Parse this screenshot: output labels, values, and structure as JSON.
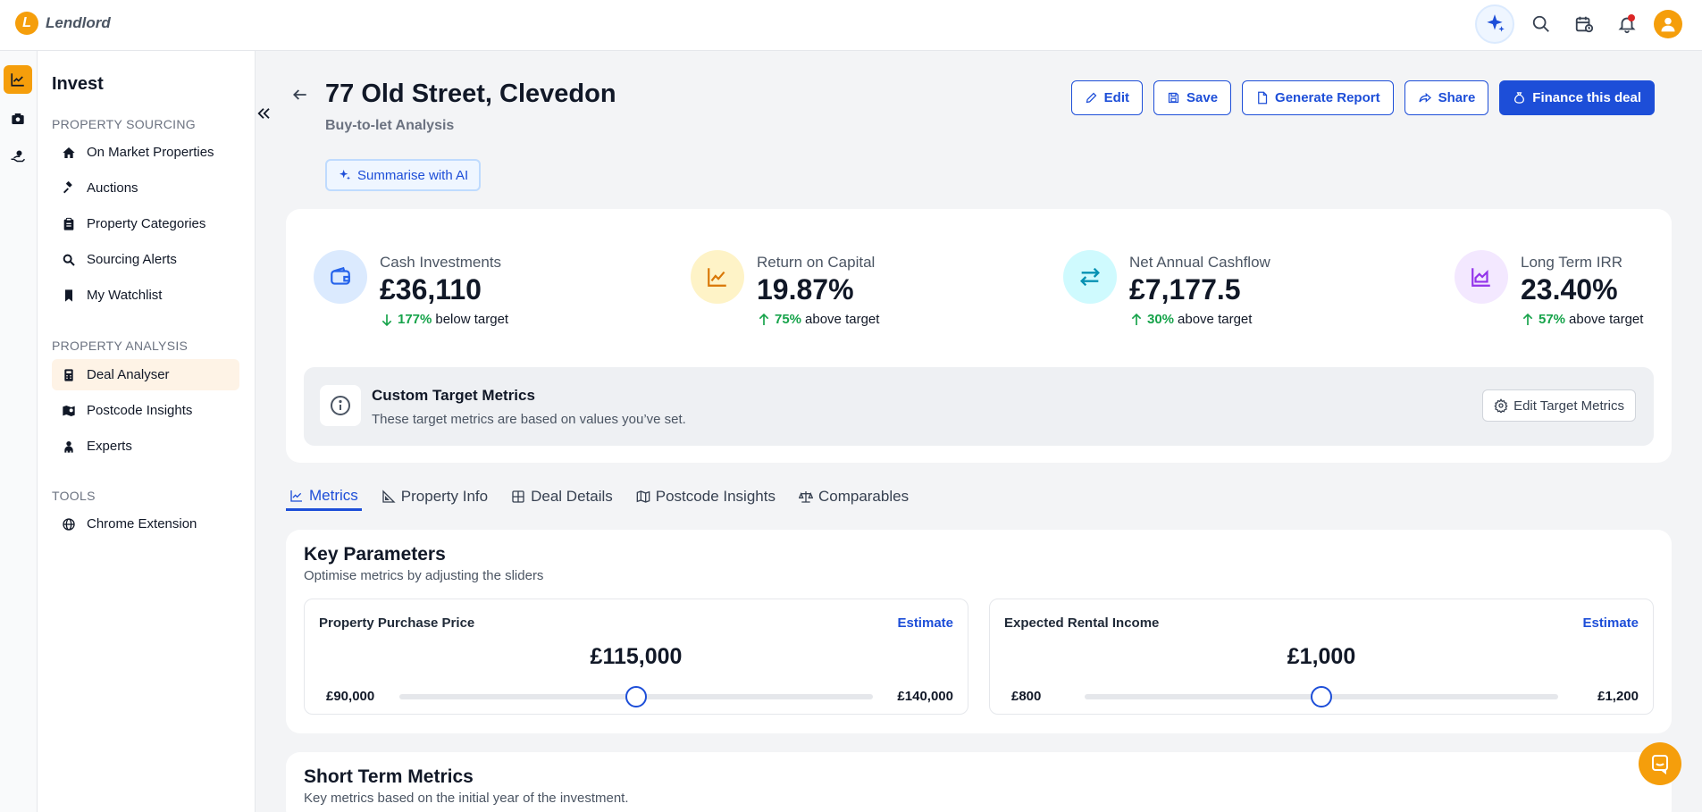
{
  "app": {
    "logo_letter": "L",
    "name": "Lendlord"
  },
  "sidebar": {
    "title": "Invest",
    "sections": [
      {
        "label": "PROPERTY SOURCING",
        "items": [
          {
            "label": "On Market Properties",
            "icon": "home-icon"
          },
          {
            "label": "Auctions",
            "icon": "gavel-icon"
          },
          {
            "label": "Property Categories",
            "icon": "clipboard-icon"
          },
          {
            "label": "Sourcing Alerts",
            "icon": "search-icon"
          },
          {
            "label": "My Watchlist",
            "icon": "bookmark-icon"
          }
        ]
      },
      {
        "label": "PROPERTY ANALYSIS",
        "items": [
          {
            "label": "Deal Analyser",
            "icon": "calculator-icon",
            "active": true
          },
          {
            "label": "Postcode Insights",
            "icon": "map-icon"
          },
          {
            "label": "Experts",
            "icon": "person-icon"
          }
        ]
      },
      {
        "label": "TOOLS",
        "items": [
          {
            "label": "Chrome Extension",
            "icon": "globe-icon"
          }
        ]
      }
    ]
  },
  "header": {
    "title": "77 Old Street, Clevedon",
    "subtitle": "Buy-to-let Analysis",
    "ai_button": "Summarise with AI",
    "actions": {
      "edit": "Edit",
      "save": "Save",
      "report": "Generate Report",
      "share": "Share",
      "finance": "Finance this deal"
    }
  },
  "kpis": [
    {
      "label": "Cash Investments",
      "value": "£36,110",
      "pct": "177%",
      "direction": "down",
      "note": "below target",
      "icon": "wallet-icon",
      "color": "#dbeafe"
    },
    {
      "label": "Return on Capital",
      "value": "19.87%",
      "pct": "75%",
      "direction": "up",
      "note": "above target",
      "icon": "line-chart-icon",
      "color": "#fef3c7"
    },
    {
      "label": "Net Annual Cashflow",
      "value": "£7,177.5",
      "pct": "30%",
      "direction": "up",
      "note": "above target",
      "icon": "arrows-exchange-icon",
      "color": "#cffafe"
    },
    {
      "label": "Long Term IRR",
      "value": "23.40%",
      "pct": "57%",
      "direction": "up",
      "note": "above target",
      "icon": "area-chart-icon",
      "color": "#f3e8ff"
    }
  ],
  "custom_targets": {
    "title": "Custom Target Metrics",
    "description": "These target metrics are based on values you’ve set.",
    "button": "Edit Target Metrics"
  },
  "tabs": [
    {
      "label": "Metrics",
      "active": true
    },
    {
      "label": "Property Info"
    },
    {
      "label": "Deal Details"
    },
    {
      "label": "Postcode Insights"
    },
    {
      "label": "Comparables"
    }
  ],
  "key_parameters": {
    "title": "Key Parameters",
    "description": "Optimise metrics by adjusting the sliders",
    "sliders": [
      {
        "label": "Property Purchase Price",
        "estimate": "Estimate",
        "value": "£115,000",
        "min": "£90,000",
        "max": "£140,000",
        "fraction": 0.5
      },
      {
        "label": "Expected Rental Income",
        "estimate": "Estimate",
        "value": "£1,000",
        "min": "£800",
        "max": "£1,200",
        "fraction": 0.5
      }
    ]
  },
  "short_term": {
    "title": "Short Term Metrics",
    "description": "Key metrics based on the initial year of the investment."
  }
}
